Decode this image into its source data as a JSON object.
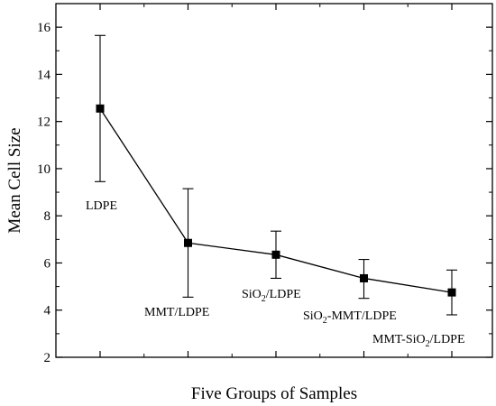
{
  "chart_data": {
    "type": "line",
    "title": "",
    "xlabel": "Five Groups of Samples",
    "ylabel": "Mean Cell Size",
    "ylim": [
      2,
      17
    ],
    "yticks": [
      2,
      4,
      6,
      8,
      10,
      12,
      14,
      16
    ],
    "grid": false,
    "categories": [
      "LDPE",
      "MMT/LDPE",
      "SiO2/LDPE",
      "SiO2-MMT/LDPE",
      "MMT-SiO2/LDPE"
    ],
    "series": [
      {
        "values": [
          12.55,
          6.85,
          6.35,
          5.35,
          4.75
        ],
        "error_upper": [
          15.65,
          9.15,
          7.35,
          6.15,
          5.7
        ],
        "error_lower": [
          9.45,
          4.55,
          5.35,
          4.5,
          3.8
        ]
      }
    ]
  },
  "labels": {
    "p0": "LDPE",
    "p1": "MMT/LDPE",
    "p2a": "SiO",
    "p2sub": "2",
    "p2b": "/LDPE",
    "p3a": "SiO",
    "p3sub": "2",
    "p3b": "-MMT/LDPE",
    "p4a": "MMT-SiO",
    "p4sub": "2",
    "p4b": "/LDPE"
  }
}
